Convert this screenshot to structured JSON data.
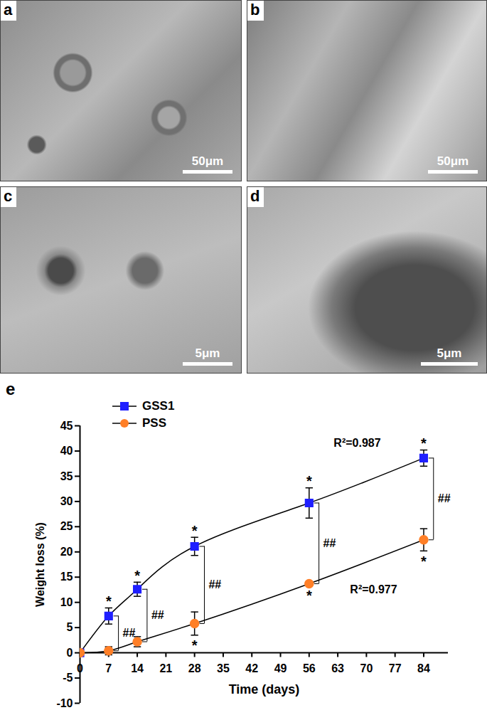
{
  "images": [
    {
      "label": "a",
      "scale_bar": "50μm"
    },
    {
      "label": "b",
      "scale_bar": "50μm"
    },
    {
      "label": "c",
      "scale_bar": "5μm"
    },
    {
      "label": "d",
      "scale_bar": "5μm"
    }
  ],
  "chart_data": {
    "type": "line",
    "panel_label": "e",
    "xlabel": "Time (days)",
    "ylabel": "Weight loss (%)",
    "x": [
      0,
      7,
      14,
      28,
      56,
      84
    ],
    "xlim": [
      0,
      90
    ],
    "xticks": [
      0,
      7,
      14,
      21,
      28,
      35,
      42,
      49,
      56,
      63,
      70,
      77,
      84
    ],
    "ylim": [
      -10,
      45
    ],
    "yticks": [
      -10,
      -5,
      0,
      5,
      10,
      15,
      20,
      25,
      30,
      35,
      40,
      45
    ],
    "grid": false,
    "legend": "top-left",
    "asterisk_text": "*",
    "series": [
      {
        "name": "GSS1",
        "color": "#1f1fff",
        "marker": "square",
        "values": [
          0,
          7.3,
          12.6,
          21.1,
          29.7,
          38.6
        ],
        "errors": [
          0,
          1.6,
          1.4,
          1.8,
          3.0,
          1.6
        ],
        "asterisks": [
          7,
          14,
          28,
          56,
          84
        ]
      },
      {
        "name": "PSS",
        "color": "#ff7f27",
        "marker": "circle",
        "values": [
          0,
          0.4,
          2.2,
          5.8,
          13.7,
          22.4
        ],
        "errors": [
          0,
          0.8,
          1.0,
          2.3,
          0.3,
          2.2
        ],
        "asterisks": [
          28,
          56,
          84
        ]
      }
    ],
    "significance": {
      "label": "##",
      "x": [
        7,
        14,
        28,
        56,
        84
      ]
    },
    "annotations": [
      {
        "text": "R²=0.987",
        "x": 62,
        "y": 41.5
      },
      {
        "text": "R²=0.977",
        "x": 66,
        "y": 12.5
      }
    ]
  }
}
